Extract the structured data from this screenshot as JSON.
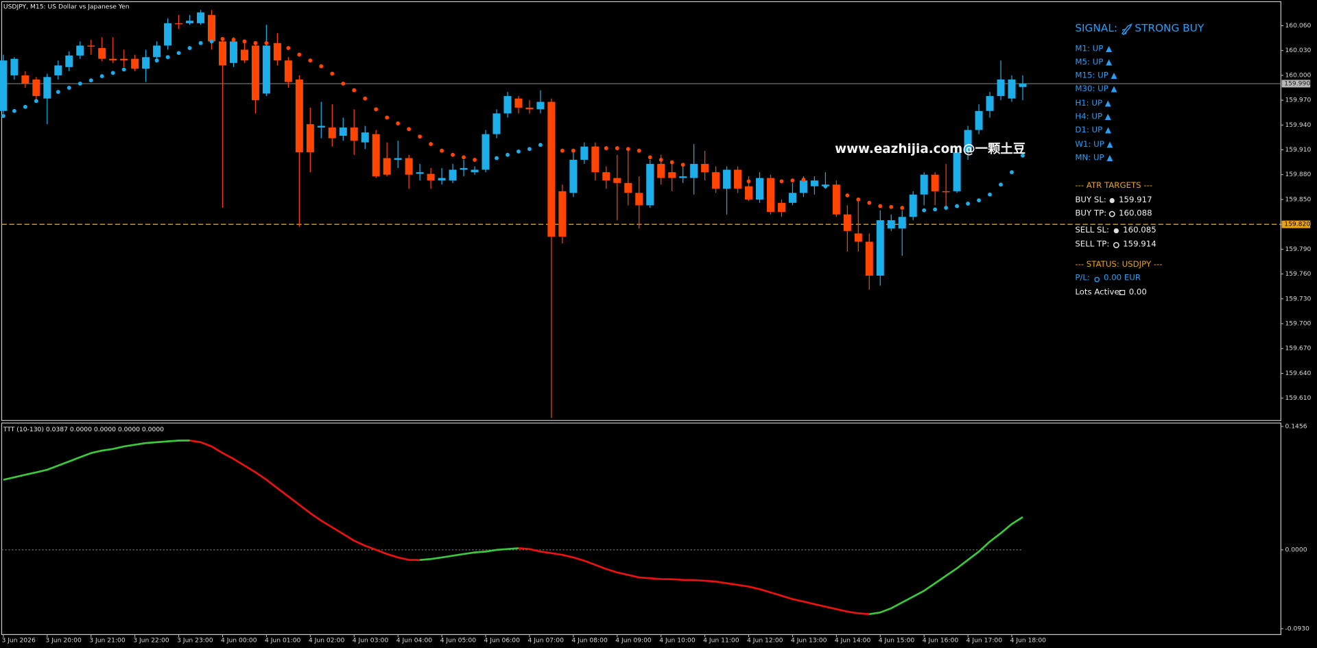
{
  "chart_data": [
    {
      "type": "candlestick",
      "title": "USDJPY, M15:  US Dollar vs Japanese Yen",
      "x": [
        "3 Jun 2026",
        null,
        null,
        null,
        "3 Jun 20:00",
        null,
        null,
        null,
        "3 Jun 21:00",
        null,
        null,
        null,
        "3 Jun 22:00",
        null,
        null,
        null,
        "3 Jun 23:00",
        null,
        null,
        null,
        "4 Jun 00:00",
        null,
        null,
        null,
        "4 Jun 01:00",
        null,
        null,
        null,
        "4 Jun 02:00",
        null,
        null,
        null,
        "4 Jun 03:00",
        null,
        null,
        null,
        "4 Jun 04:00",
        null,
        null,
        null,
        "4 Jun 05:00",
        null,
        null,
        null,
        "4 Jun 06:00",
        null,
        null,
        null,
        "4 Jun 07:00",
        null,
        null,
        null,
        "4 Jun 08:00",
        null,
        null,
        null,
        "4 Jun 09:00",
        null,
        null,
        null,
        "4 Jun 10:00",
        null,
        null,
        null,
        "4 Jun 11:00",
        null,
        null,
        null,
        "4 Jun 12:00",
        null,
        null,
        null,
        "4 Jun 13:00",
        null,
        null,
        null,
        "4 Jun 14:00",
        null,
        null,
        null,
        "4 Jun 15:00",
        null,
        null,
        null,
        "4 Jun 16:00",
        null,
        null,
        null,
        "4 Jun 17:00",
        null,
        null,
        null,
        "4 Jun 18:00",
        null
      ],
      "open": [
        159.957,
        160.0,
        160.0,
        159.995,
        159.972,
        160.0,
        160.01,
        160.024,
        160.036,
        160.033,
        160.02,
        160.02,
        160.02,
        160.008,
        160.022,
        160.036,
        160.063,
        160.063,
        160.063,
        160.073,
        160.041,
        160.015,
        160.031,
        160.036,
        159.978,
        160.039,
        160.018,
        159.995,
        159.941,
        159.937,
        159.937,
        159.927,
        159.937,
        159.919,
        159.929,
        159.9,
        159.898,
        159.9,
        159.881,
        159.881,
        159.873,
        159.873,
        159.886,
        159.883,
        159.886,
        159.929,
        159.954,
        159.972,
        159.961,
        159.959,
        159.968,
        159.86,
        159.858,
        159.898,
        159.914,
        159.883,
        159.876,
        159.87,
        159.858,
        159.843,
        159.893,
        159.883,
        159.876,
        159.876,
        159.893,
        159.883,
        159.863,
        159.886,
        159.866,
        159.85,
        159.876,
        159.846,
        159.846,
        159.858,
        159.866,
        159.866,
        159.868,
        159.832,
        159.809,
        159.799,
        159.758,
        159.815,
        159.815,
        159.829,
        159.856,
        159.88,
        159.86,
        159.86,
        159.907,
        159.934,
        159.957,
        159.975,
        159.972,
        159.986
      ],
      "high": [
        160.025,
        160.022,
        160.005,
        159.998,
        160.002,
        160.018,
        160.029,
        160.041,
        160.043,
        160.046,
        160.046,
        160.031,
        160.025,
        160.031,
        160.041,
        160.069,
        160.073,
        160.073,
        160.079,
        160.079,
        160.046,
        160.046,
        160.041,
        160.041,
        160.061,
        160.051,
        160.022,
        160.0,
        159.961,
        159.968,
        159.965,
        159.949,
        159.959,
        159.939,
        159.934,
        159.919,
        159.921,
        159.904,
        159.893,
        159.888,
        159.888,
        159.893,
        159.898,
        159.89,
        159.934,
        159.959,
        159.98,
        159.975,
        159.97,
        159.982,
        159.972,
        159.868,
        159.909,
        159.919,
        159.919,
        159.89,
        159.904,
        159.909,
        159.878,
        159.898,
        159.904,
        159.893,
        159.89,
        159.917,
        159.909,
        159.89,
        159.89,
        159.89,
        159.878,
        159.883,
        159.88,
        159.85,
        159.87,
        159.878,
        159.878,
        159.883,
        159.873,
        159.843,
        159.848,
        159.809,
        159.837,
        159.832,
        159.837,
        159.86,
        159.883,
        159.883,
        159.893,
        159.914,
        159.939,
        159.965,
        159.98,
        160.018,
        160.0,
        160.0
      ],
      "low": [
        159.954,
        159.995,
        159.985,
        159.97,
        159.941,
        159.995,
        160.005,
        160.02,
        160.025,
        160.017,
        160.015,
        160.01,
        160.005,
        159.992,
        160.018,
        160.031,
        160.056,
        160.061,
        160.061,
        160.031,
        159.84,
        160.01,
        160.015,
        159.954,
        159.975,
        160.012,
        159.985,
        159.817,
        159.883,
        159.924,
        159.914,
        159.921,
        159.904,
        159.911,
        159.876,
        159.878,
        159.888,
        159.863,
        159.873,
        159.863,
        159.868,
        159.87,
        159.878,
        159.88,
        159.883,
        159.924,
        159.949,
        159.954,
        159.954,
        159.954,
        159.586,
        159.797,
        159.853,
        159.893,
        159.873,
        159.863,
        159.825,
        159.843,
        159.815,
        159.84,
        159.868,
        159.86,
        159.87,
        159.856,
        159.873,
        159.858,
        159.832,
        159.858,
        159.848,
        159.846,
        159.832,
        159.829,
        159.843,
        159.853,
        159.856,
        159.863,
        159.829,
        159.787,
        159.787,
        159.741,
        159.746,
        159.812,
        159.782,
        159.825,
        159.843,
        159.843,
        159.837,
        159.858,
        159.898,
        159.929,
        159.949,
        159.97,
        159.968,
        159.97
      ],
      "close": [
        160.018,
        160.02,
        159.99,
        159.975,
        159.998,
        160.012,
        160.024,
        160.036,
        160.035,
        160.02,
        160.018,
        160.018,
        160.008,
        160.022,
        160.036,
        160.063,
        160.062,
        160.066,
        160.076,
        160.041,
        160.012,
        160.041,
        160.018,
        159.97,
        160.036,
        160.018,
        159.992,
        159.907,
        159.907,
        159.939,
        159.924,
        159.937,
        159.921,
        159.931,
        159.878,
        159.88,
        159.9,
        159.88,
        159.883,
        159.873,
        159.876,
        159.886,
        159.888,
        159.886,
        159.929,
        159.954,
        159.975,
        159.961,
        159.959,
        159.968,
        159.805,
        159.805,
        159.898,
        159.914,
        159.883,
        159.873,
        159.87,
        159.858,
        159.843,
        159.893,
        159.876,
        159.876,
        159.878,
        159.893,
        159.883,
        159.863,
        159.886,
        159.863,
        159.85,
        159.876,
        159.835,
        159.835,
        159.858,
        159.873,
        159.873,
        159.868,
        159.832,
        159.812,
        159.799,
        159.758,
        159.825,
        159.825,
        159.829,
        159.856,
        159.88,
        159.86,
        159.859,
        159.907,
        159.934,
        159.957,
        159.975,
        159.995,
        159.995,
        159.99
      ],
      "up_color": "#1daeea",
      "down_color": "#ff4500",
      "sar": [
        159.951,
        159.957,
        159.962,
        159.969,
        159.975,
        159.98,
        159.985,
        159.99,
        159.994,
        159.999,
        160.003,
        160.007,
        160.01,
        160.014,
        160.018,
        160.022,
        160.027,
        160.033,
        160.039,
        160.041,
        160.044,
        160.043,
        160.041,
        160.039,
        160.039,
        160.036,
        160.033,
        160.025,
        160.018,
        160.011,
        160.002,
        159.99,
        159.982,
        159.972,
        159.959,
        159.949,
        159.942,
        159.935,
        159.926,
        159.917,
        159.909,
        159.904,
        159.901,
        159.898,
        159.896,
        159.9,
        159.904,
        159.908,
        159.911,
        159.916,
        159.917,
        159.909,
        159.909,
        159.911,
        159.912,
        159.912,
        159.912,
        159.911,
        159.909,
        159.901,
        159.898,
        159.895,
        159.892,
        159.889,
        159.885,
        159.881,
        159.878,
        159.875,
        159.872,
        159.87,
        159.87,
        159.872,
        159.873,
        159.874,
        159.87,
        159.866,
        159.86,
        159.855,
        159.85,
        159.846,
        159.842,
        159.841,
        159.84,
        159.837,
        159.837,
        159.838,
        159.84,
        159.842,
        159.845,
        159.849,
        159.856,
        159.868,
        159.883,
        159.903
      ],
      "ylim": [
        159.584,
        160.088
      ],
      "yticks": [
        {
          "value": 160.06,
          "label": "160.060"
        },
        {
          "value": 160.03,
          "label": "160.030"
        },
        {
          "value": 160.0,
          "label": "160.000"
        },
        {
          "value": 159.97,
          "label": "159.970"
        },
        {
          "value": 159.94,
          "label": "159.940"
        },
        {
          "value": 159.91,
          "label": "159.910"
        },
        {
          "value": 159.88,
          "label": "159.880"
        },
        {
          "value": 159.85,
          "label": "159.850"
        },
        {
          "value": 159.82,
          "label": "159.820"
        },
        {
          "value": 159.79,
          "label": "159.790"
        },
        {
          "value": 159.76,
          "label": "159.760"
        },
        {
          "value": 159.73,
          "label": "159.730"
        },
        {
          "value": 159.7,
          "label": "159.700"
        },
        {
          "value": 159.67,
          "label": "159.670"
        },
        {
          "value": 159.64,
          "label": "159.640"
        },
        {
          "value": 159.61,
          "label": "159.610"
        }
      ],
      "price_line": {
        "value": 159.99,
        "label": "159.990",
        "color": "#8c8c8c"
      },
      "level_line": {
        "value": 159.82,
        "label": "159.820",
        "color": "#e8a317"
      }
    },
    {
      "type": "line",
      "title": "TTT (10-130) 0.0387 0.0000 0.0000 0.0000 0.0000",
      "values": [
        0.0827,
        0.0856,
        0.0886,
        0.0915,
        0.0945,
        0.0994,
        0.1043,
        0.1093,
        0.1142,
        0.1171,
        0.1191,
        0.122,
        0.124,
        0.126,
        0.127,
        0.128,
        0.1289,
        0.129,
        0.127,
        0.122,
        0.1142,
        0.1073,
        0.0994,
        0.0915,
        0.0827,
        0.0728,
        0.063,
        0.0531,
        0.0433,
        0.0344,
        0.0266,
        0.0187,
        0.0108,
        0.0049,
        0.0,
        -0.0049,
        -0.0089,
        -0.0118,
        -0.0119,
        -0.0108,
        -0.0089,
        -0.0069,
        -0.0049,
        -0.003,
        -0.002,
        0.0,
        0.001,
        0.002,
        0.001,
        -0.002,
        -0.0039,
        -0.0059,
        -0.0089,
        -0.0128,
        -0.0177,
        -0.0226,
        -0.0266,
        -0.0295,
        -0.0325,
        -0.0335,
        -0.0344,
        -0.0346,
        -0.0354,
        -0.0356,
        -0.0364,
        -0.0374,
        -0.0394,
        -0.0413,
        -0.0433,
        -0.0463,
        -0.0502,
        -0.0541,
        -0.0581,
        -0.061,
        -0.064,
        -0.0669,
        -0.0699,
        -0.0728,
        -0.0748,
        -0.0758,
        -0.0738,
        -0.0689,
        -0.062,
        -0.0551,
        -0.0482,
        -0.0394,
        -0.0305,
        -0.0217,
        -0.0118,
        -0.002,
        0.0098,
        0.0197,
        0.0305,
        0.0387
      ],
      "up_color": "#3cc83c",
      "down_color": "#ee1111",
      "ylim": [
        -0.0989,
        0.1486
      ],
      "yticks": [
        0.1456,
        {
          "value": 0,
          "label": "0.0000"
        },
        {
          "value": -0.093,
          "label": "-0.0930"
        }
      ],
      "zero_line": true
    }
  ],
  "panel": {
    "signal_label": "SIGNAL:",
    "signal": "STRONG BUY",
    "timeframes": [
      "M1: UP ▲",
      "M5: UP ▲",
      "M15: UP ▲",
      "M30: UP ▲",
      "H1: UP ▲",
      "H4: UP ▲",
      "D1: UP ▲",
      "W1: UP ▲",
      "MN: UP ▲"
    ],
    "atr_heading": "--- ATR TARGETS ---",
    "atr": [
      {
        "label": "BUY SL:",
        "value": 159.917
      },
      {
        "label": "BUY TP:",
        "value": 160.088
      },
      {
        "label": "SELL SL:",
        "value": 160.085
      },
      {
        "label": "SELL TP:",
        "value": 159.914
      }
    ],
    "status_heading": "--- STATUS: USDJPY ---",
    "pl": {
      "label": "P/L:",
      "value": "0.00 EUR"
    },
    "lots": {
      "label": "Lots Active:",
      "value": "0.00"
    }
  },
  "watermark": "www.eazhijia.com@一颗土豆"
}
